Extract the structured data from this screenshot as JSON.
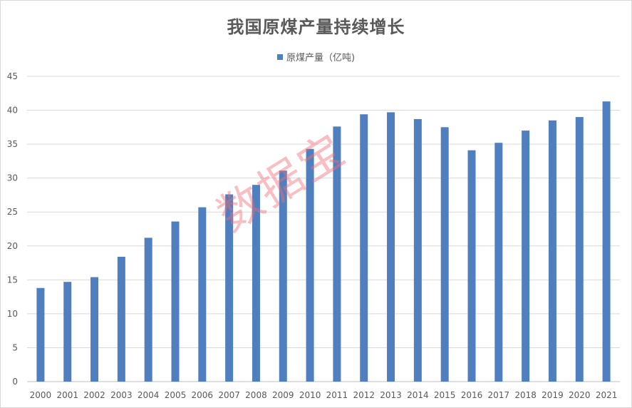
{
  "chart_data": {
    "type": "bar",
    "title": "我国原煤产量持续增长",
    "legend": {
      "position": "top",
      "entries": [
        "原煤产量（亿吨)"
      ]
    },
    "categories": [
      "2000",
      "2001",
      "2002",
      "2003",
      "2004",
      "2005",
      "2006",
      "2007",
      "2008",
      "2009",
      "2010",
      "2011",
      "2012",
      "2013",
      "2014",
      "2015",
      "2016",
      "2017",
      "2018",
      "2019",
      "2020",
      "2021"
    ],
    "series": [
      {
        "name": "原煤产量（亿吨)",
        "color": "#4f7fbe",
        "values": [
          13.8,
          14.7,
          15.4,
          18.4,
          21.2,
          23.6,
          25.7,
          27.6,
          29.0,
          31.1,
          34.3,
          37.6,
          39.4,
          39.7,
          38.7,
          37.5,
          34.1,
          35.2,
          37.0,
          38.5,
          39.0,
          41.3
        ]
      }
    ],
    "yticks": [
      "0",
      "5",
      "10",
      "15",
      "20",
      "25",
      "30",
      "35",
      "40",
      "45"
    ],
    "ylim": [
      0,
      45
    ],
    "grid": true
  },
  "watermark": "数据宝"
}
